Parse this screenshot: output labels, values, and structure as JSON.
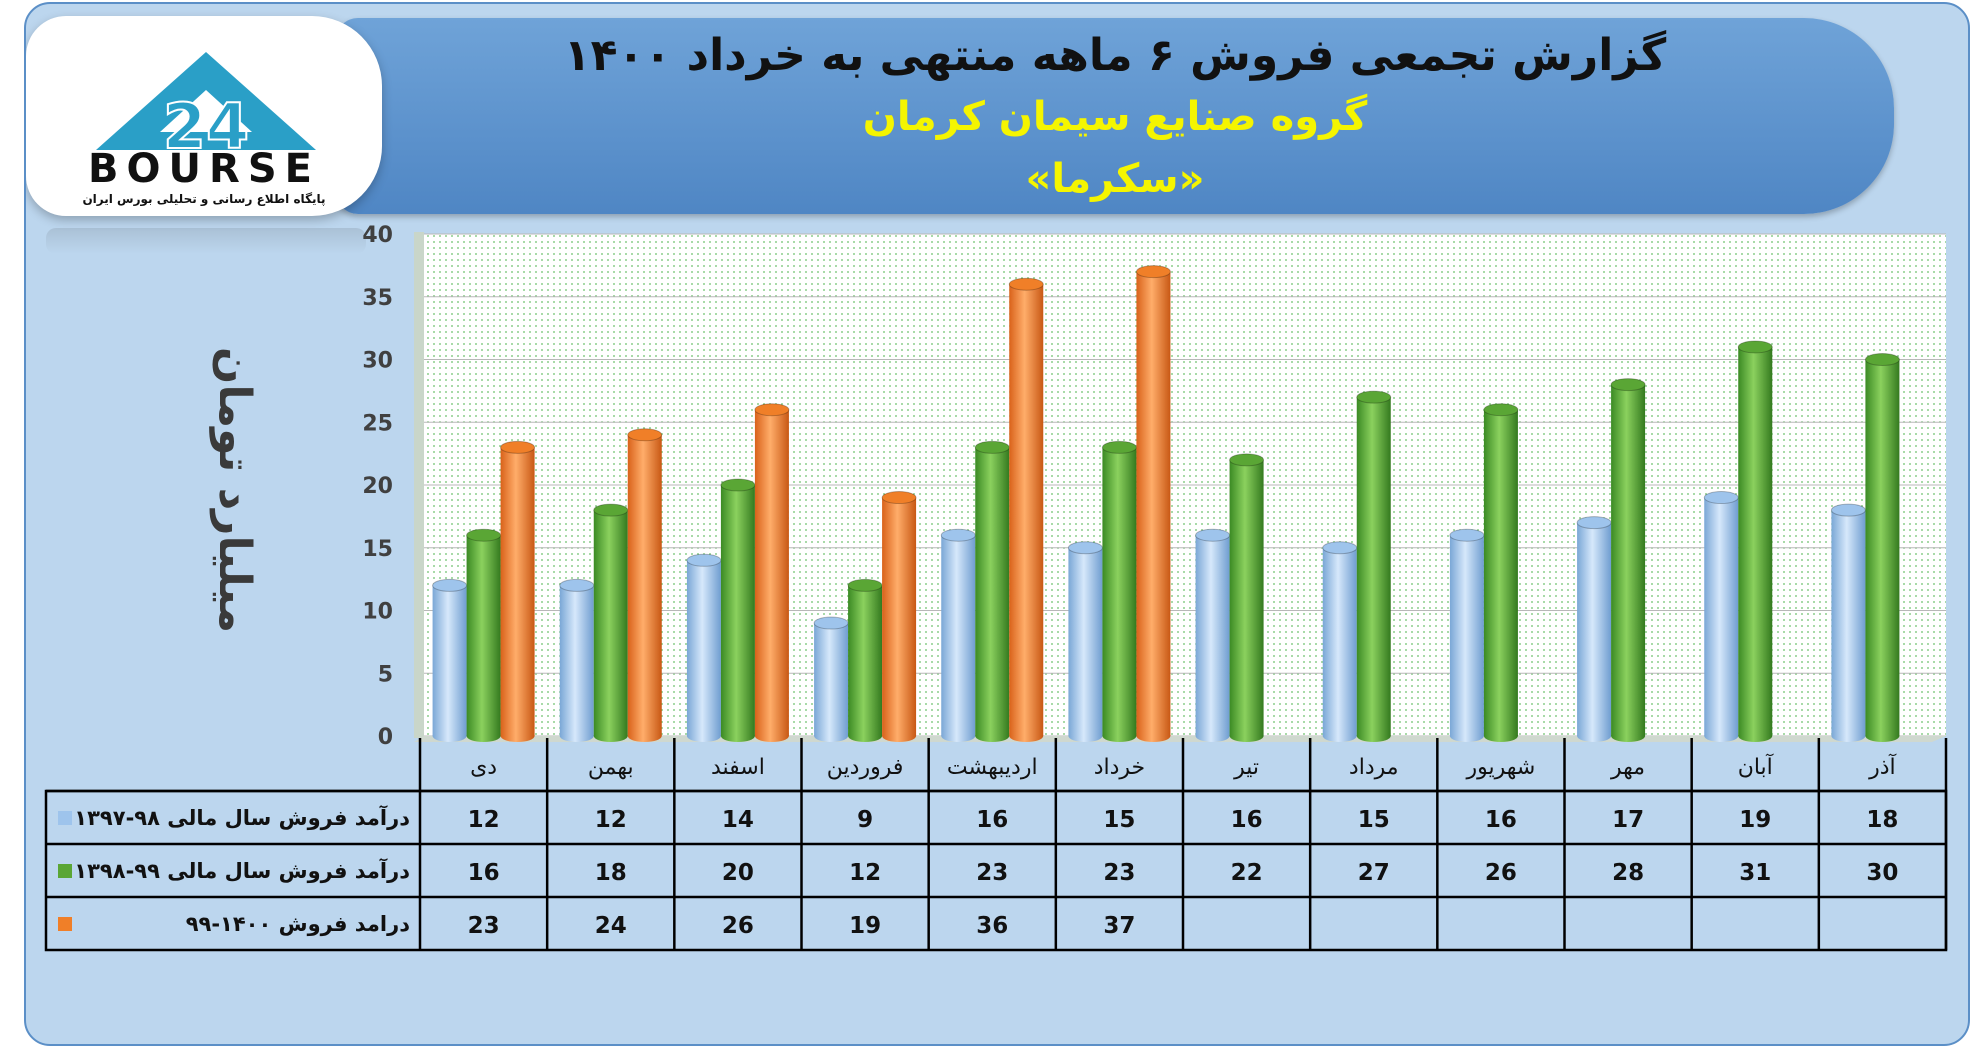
{
  "header": {
    "title": "گزارش تجمعی فروش ۶ ماهه منتهی به خرداد ۱۴۰۰",
    "company": "گروه صنایع سیمان کرمان",
    "ticker": "«سکرما»"
  },
  "logo": {
    "wordmark": "BOURSE",
    "tagline": "پایگاه اطلاع رسانی و تحلیلی بورس ایران"
  },
  "colors": {
    "series1": "#9ec4ec",
    "series2": "#5aa635",
    "series3": "#f07f28"
  },
  "chart_data": {
    "type": "bar",
    "title": "گزارش تجمعی فروش ۶ ماهه منتهی به خرداد ۱۴۰۰",
    "ylabel": "میلیارد تومان",
    "xlabel": "",
    "ylim": [
      0,
      40
    ],
    "yticks": [
      "0",
      "5",
      "10",
      "15",
      "20",
      "25",
      "30",
      "35",
      "40"
    ],
    "grid": true,
    "legend_position": "table-left",
    "categories": [
      "دی",
      "بهمن",
      "اسفند",
      "فروردین",
      "اردیبهشت",
      "خرداد",
      "تیر",
      "مرداد",
      "شهریور",
      "مهر",
      "آبان",
      "آذر"
    ],
    "series": [
      {
        "name": "درآمد فروش سال مالی ۹۸-۱۳۹۷",
        "values": [
          12,
          12,
          14,
          9,
          16,
          15,
          16,
          15,
          16,
          17,
          19,
          18
        ]
      },
      {
        "name": "درآمد فروش سال مالی ۹۹-۱۳۹۸",
        "values": [
          16,
          18,
          20,
          12,
          23,
          23,
          22,
          27,
          26,
          28,
          31,
          30
        ]
      },
      {
        "name": "درامد فروش ۱۴۰۰-۹۹",
        "values": [
          23,
          24,
          26,
          19,
          36,
          37,
          null,
          null,
          null,
          null,
          null,
          null
        ]
      }
    ]
  }
}
